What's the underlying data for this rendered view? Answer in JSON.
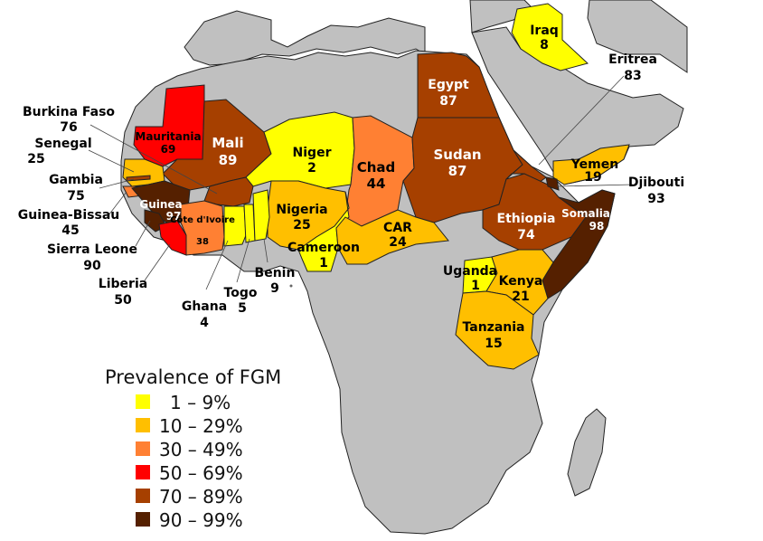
{
  "colors": {
    "background": "#ffffff",
    "land": "#c0c0c0",
    "border": "#ffffff",
    "outline": "#222222",
    "water": "#ffffff",
    "bin_1_9": "#ffff00",
    "bin_10_29": "#ffbf00",
    "bin_30_49": "#ff8033",
    "bin_50_69": "#ff0000",
    "bin_70_89": "#a64000",
    "bin_90_99": "#552000"
  },
  "countries": [
    {
      "name": "Iraq",
      "value": "8",
      "bin": "bin_1_9"
    },
    {
      "name": "Eritrea",
      "value": "83",
      "bin": "bin_70_89"
    },
    {
      "name": "Egypt",
      "value": "87",
      "bin": "bin_70_89"
    },
    {
      "name": "Burkina Faso",
      "value": "76",
      "bin": "bin_70_89"
    },
    {
      "name": "Mauritania",
      "value": "69",
      "bin": "bin_50_69"
    },
    {
      "name": "Senegal",
      "value": "25",
      "bin": "bin_10_29"
    },
    {
      "name": "Mali",
      "value": "89",
      "bin": "bin_70_89"
    },
    {
      "name": "Niger",
      "value": "2",
      "bin": "bin_1_9"
    },
    {
      "name": "Chad",
      "value": "44",
      "bin": "bin_30_49"
    },
    {
      "name": "Sudan",
      "value": "87",
      "bin": "bin_70_89"
    },
    {
      "name": "Yemen",
      "value": "19",
      "bin": "bin_10_29"
    },
    {
      "name": "Gambia",
      "value": "75",
      "bin": "bin_70_89"
    },
    {
      "name": "Djibouti",
      "value": "93",
      "bin": "bin_90_99"
    },
    {
      "name": "Guinea",
      "value": "97",
      "bin": "bin_90_99"
    },
    {
      "name": "Guinea-Bissau",
      "value": "45",
      "bin": "bin_30_49"
    },
    {
      "name": "Côte d'Ivoire",
      "value": "38",
      "bin": "bin_30_49"
    },
    {
      "name": "Nigeria",
      "value": "25",
      "bin": "bin_10_29"
    },
    {
      "name": "Ethiopia",
      "value": "74",
      "bin": "bin_70_89"
    },
    {
      "name": "Somalia",
      "value": "98",
      "bin": "bin_90_99"
    },
    {
      "name": "CAR",
      "value": "24",
      "bin": "bin_10_29"
    },
    {
      "name": "Sierra Leone",
      "value": "90",
      "bin": "bin_90_99"
    },
    {
      "name": "Cameroon",
      "value": "1",
      "bin": "bin_1_9"
    },
    {
      "name": "Uganda",
      "value": "1",
      "bin": "bin_1_9"
    },
    {
      "name": "Kenya",
      "value": "21",
      "bin": "bin_10_29"
    },
    {
      "name": "Liberia",
      "value": "50",
      "bin": "bin_50_69"
    },
    {
      "name": "Benin",
      "value": "9",
      "bin": "bin_1_9"
    },
    {
      "name": "Togo",
      "value": "5",
      "bin": "bin_1_9"
    },
    {
      "name": "Ghana",
      "value": "4",
      "bin": "bin_1_9"
    },
    {
      "name": "Tanzania",
      "value": "15",
      "bin": "bin_10_29"
    }
  ],
  "legend": {
    "title": "Prevalence of FGM",
    "items": [
      {
        "label": "1 – 9%",
        "bin": "bin_1_9"
      },
      {
        "label": "10 – 29%",
        "bin": "bin_10_29"
      },
      {
        "label": "30 – 49%",
        "bin": "bin_30_49"
      },
      {
        "label": "50 – 69%",
        "bin": "bin_50_69"
      },
      {
        "label": "70 – 89%",
        "bin": "bin_70_89"
      },
      {
        "label": "90 – 99%",
        "bin": "bin_90_99"
      }
    ]
  }
}
